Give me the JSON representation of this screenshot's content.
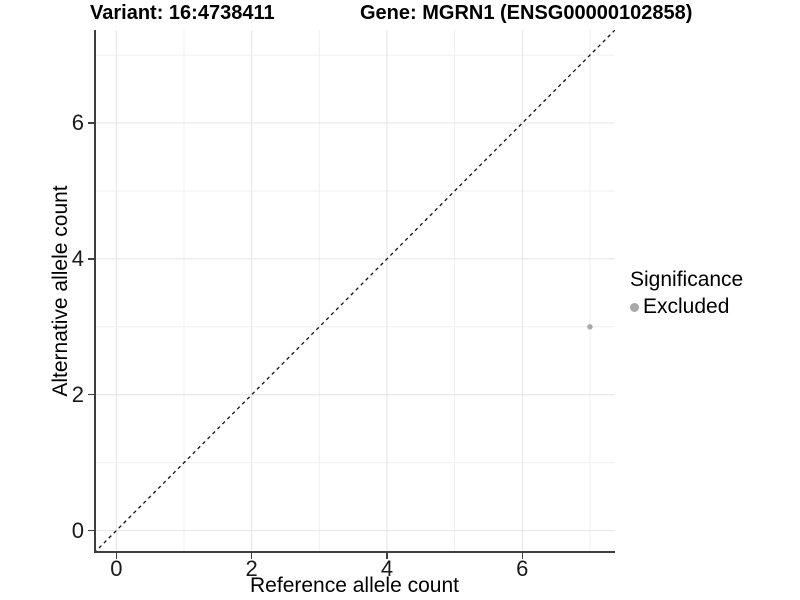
{
  "titles": {
    "left": "Variant: 16:4738411",
    "right": "Gene: MGRN1 (ENSG00000102858)"
  },
  "chart_data": {
    "type": "scatter",
    "xlabel": "Reference allele count",
    "ylabel": "Alternative allele count",
    "xlim": [
      -0.33,
      7.37
    ],
    "ylim": [
      -0.33,
      7.37
    ],
    "x_major_ticks": [
      0,
      2,
      4,
      6
    ],
    "y_major_ticks": [
      0,
      2,
      4,
      6
    ],
    "x_minor_ticks": [
      1,
      3,
      5,
      7
    ],
    "y_minor_ticks": [
      1,
      3,
      5,
      7
    ],
    "grid": true,
    "identity_line": {
      "equation": "y = x",
      "style": "dashed",
      "color": "#111111"
    },
    "series": [
      {
        "name": "Excluded",
        "color": "#a9a9a9",
        "points": [
          {
            "x": 7,
            "y": 3
          }
        ]
      }
    ],
    "legend": {
      "title": "Significance",
      "position": "right",
      "items": [
        {
          "label": "Excluded",
          "color": "#a9a9a9"
        }
      ]
    }
  },
  "colors": {
    "background": "#ffffff",
    "grid_major": "#e4e4e4",
    "grid_minor": "#efefef",
    "axis_line": "#3f3f3f",
    "point": "#a9a9a9"
  }
}
